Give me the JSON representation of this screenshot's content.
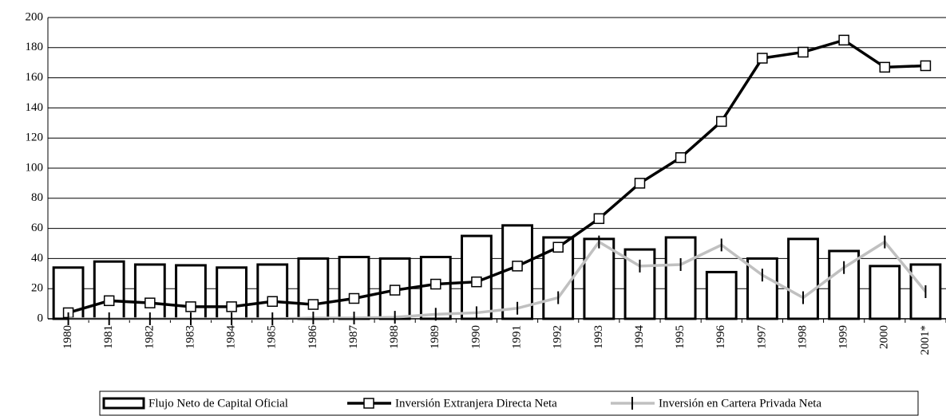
{
  "chart_data": {
    "type": "bar-line",
    "categories": [
      "1980",
      "1981",
      "1982",
      "1983",
      "1984",
      "1985",
      "1986",
      "1987",
      "1988",
      "1989",
      "1990",
      "1991",
      "1992",
      "1993",
      "1994",
      "1995",
      "1996",
      "1997",
      "1998",
      "1999",
      "2000",
      "2001*"
    ],
    "series": [
      {
        "name": "Flujo Neto de Capital Oficial",
        "kind": "bar",
        "color": "#ffffff",
        "values": [
          34,
          38,
          36,
          35.5,
          34,
          36,
          40,
          41,
          40,
          41,
          55,
          62,
          54,
          53,
          46,
          54,
          31,
          40,
          53,
          45,
          35,
          36
        ]
      },
      {
        "name": "Inversión Extranjera Directa Neta",
        "kind": "line",
        "color": "#000000",
        "values": [
          4,
          12,
          10.5,
          8,
          8,
          11.5,
          9.5,
          13.5,
          19,
          23,
          24.5,
          35,
          47.5,
          66.5,
          90,
          107,
          131,
          173,
          177,
          185,
          167,
          168
        ]
      },
      {
        "name": "Inversión en Cartera Privada Neta",
        "kind": "line",
        "color": "#c0c0c0",
        "values": [
          0,
          0,
          0,
          0,
          0,
          0,
          0.5,
          0.5,
          1,
          3,
          4,
          7,
          14,
          51,
          35,
          36,
          49,
          29,
          14,
          34,
          51,
          18
        ]
      }
    ],
    "ylim": [
      0,
      200
    ],
    "yticks": [
      0,
      20,
      40,
      60,
      80,
      100,
      120,
      140,
      160,
      180,
      200
    ],
    "grid": true,
    "legend": "bottom"
  }
}
